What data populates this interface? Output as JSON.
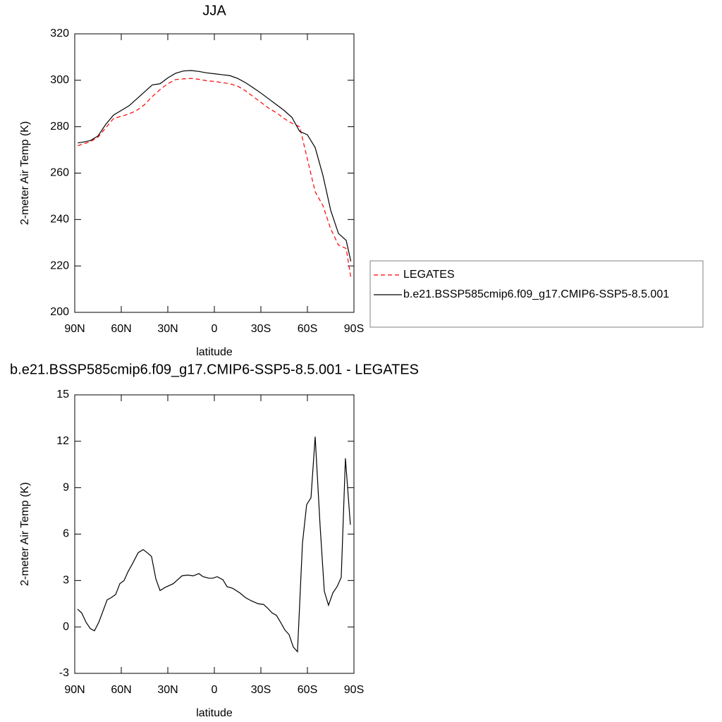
{
  "chart_data": [
    {
      "type": "line",
      "title": "JJA",
      "xlabel": "latitude",
      "ylabel": "2-meter Air Temp (K)",
      "x": [
        88,
        85,
        80,
        75,
        70,
        65,
        60,
        55,
        50,
        45,
        40,
        35,
        30,
        25,
        20,
        15,
        10,
        5,
        0,
        -5,
        -10,
        -15,
        -20,
        -25,
        -30,
        -35,
        -40,
        -45,
        -50,
        -55,
        -60,
        -65,
        -70,
        -75,
        -80,
        -85,
        -88
      ],
      "series": [
        {
          "name": "LEGATES",
          "color": "#ff0000",
          "dashed": true,
          "values": [
            271.8,
            272.5,
            273.5,
            275.5,
            279.5,
            283.5,
            284.5,
            285.5,
            287,
            289.5,
            293,
            296,
            298.5,
            300.3,
            300.6,
            300.8,
            300.4,
            299.8,
            299.5,
            299,
            298.5,
            297.5,
            295.5,
            293,
            290.5,
            288,
            286,
            283.5,
            281.5,
            280,
            266,
            252,
            246,
            236,
            229,
            227.5,
            215
          ]
        },
        {
          "name": "b.e21.BSSP585cmip6.f09_g17.CMIP6-SSP5-8.5.001",
          "color": "#000000",
          "dashed": false,
          "values": [
            273,
            273.3,
            274,
            276,
            281,
            285,
            287,
            289,
            292,
            295,
            298,
            298.5,
            301,
            303,
            304,
            304.2,
            303.8,
            303.2,
            302.8,
            302.4,
            302,
            300.8,
            299,
            296.8,
            294.5,
            292,
            289.5,
            287,
            284,
            278,
            276.5,
            271,
            259,
            244,
            234,
            231,
            222
          ]
        }
      ],
      "xlim": [
        90,
        -90
      ],
      "xticks": [
        {
          "value": 90,
          "label": "90N"
        },
        {
          "value": 60,
          "label": "60N"
        },
        {
          "value": 30,
          "label": "30N"
        },
        0,
        {
          "value": -30,
          "label": "30S"
        },
        {
          "value": -60,
          "label": "60S"
        },
        {
          "value": -90,
          "label": "90S"
        }
      ],
      "ylim": [
        200,
        320
      ],
      "yticks": [
        200,
        220,
        240,
        260,
        280,
        300,
        320
      ],
      "legend": "right"
    },
    {
      "type": "line",
      "title": "b.e21.BSSP585cmip6.f09_g17.CMIP6-SSP5-8.5.001 - LEGATES",
      "xlabel": "latitude",
      "ylabel": "2-meter Air Temp (K)",
      "x": [
        88.2,
        85.5,
        82.7,
        80,
        77.3,
        74.5,
        69.1,
        66.4,
        63.6,
        60.9,
        58.2,
        55.5,
        52.7,
        49.1,
        45.9,
        42.7,
        40.5,
        37.7,
        35,
        31.8,
        26.4,
        20.9,
        17.3,
        13.6,
        10,
        7.3,
        3.6,
        0.9,
        -1.8,
        -5.5,
        -8.2,
        -11.8,
        -16.4,
        -20,
        -23.6,
        -28.2,
        -31.8,
        -34.5,
        -37.3,
        -40,
        -42.7,
        -45.5,
        -48.2,
        -50.9,
        -53.6,
        -56.8,
        -59.5,
        -62.3,
        -65,
        -68.2,
        -70.9,
        -73.6,
        -76.4,
        -79.1,
        -81.8,
        -84.5,
        -87.7
      ],
      "series": [
        {
          "color": "#000000",
          "dashed": false,
          "values": [
            1.15,
            0.9,
            0.3,
            -0.1,
            -0.25,
            0.3,
            1.75,
            1.9,
            2.1,
            2.8,
            3,
            3.6,
            4.1,
            4.8,
            5,
            4.75,
            4.55,
            3.1,
            2.35,
            2.55,
            2.8,
            3.3,
            3.35,
            3.3,
            3.45,
            3.25,
            3.15,
            3.15,
            3.25,
            3.05,
            2.6,
            2.5,
            2.2,
            1.9,
            1.7,
            1.5,
            1.45,
            1.2,
            0.9,
            0.75,
            0.3,
            -0.2,
            -0.5,
            -1.3,
            -1.6,
            5.4,
            7.9,
            8.35,
            12.3,
            6.5,
            2.3,
            1.4,
            2.2,
            2.6,
            3.2,
            10.9,
            6.6
          ]
        }
      ],
      "xlim": [
        90,
        -90
      ],
      "xticks": [
        {
          "value": 90,
          "label": "90N"
        },
        {
          "value": 60,
          "label": "60N"
        },
        {
          "value": 30,
          "label": "30N"
        },
        0,
        {
          "value": -30,
          "label": "30S"
        },
        {
          "value": -60,
          "label": "60S"
        },
        {
          "value": -90,
          "label": "90S"
        }
      ],
      "ylim": [
        -3,
        15
      ],
      "yticks": [
        -3,
        0,
        3,
        6,
        9,
        12,
        15
      ]
    }
  ]
}
